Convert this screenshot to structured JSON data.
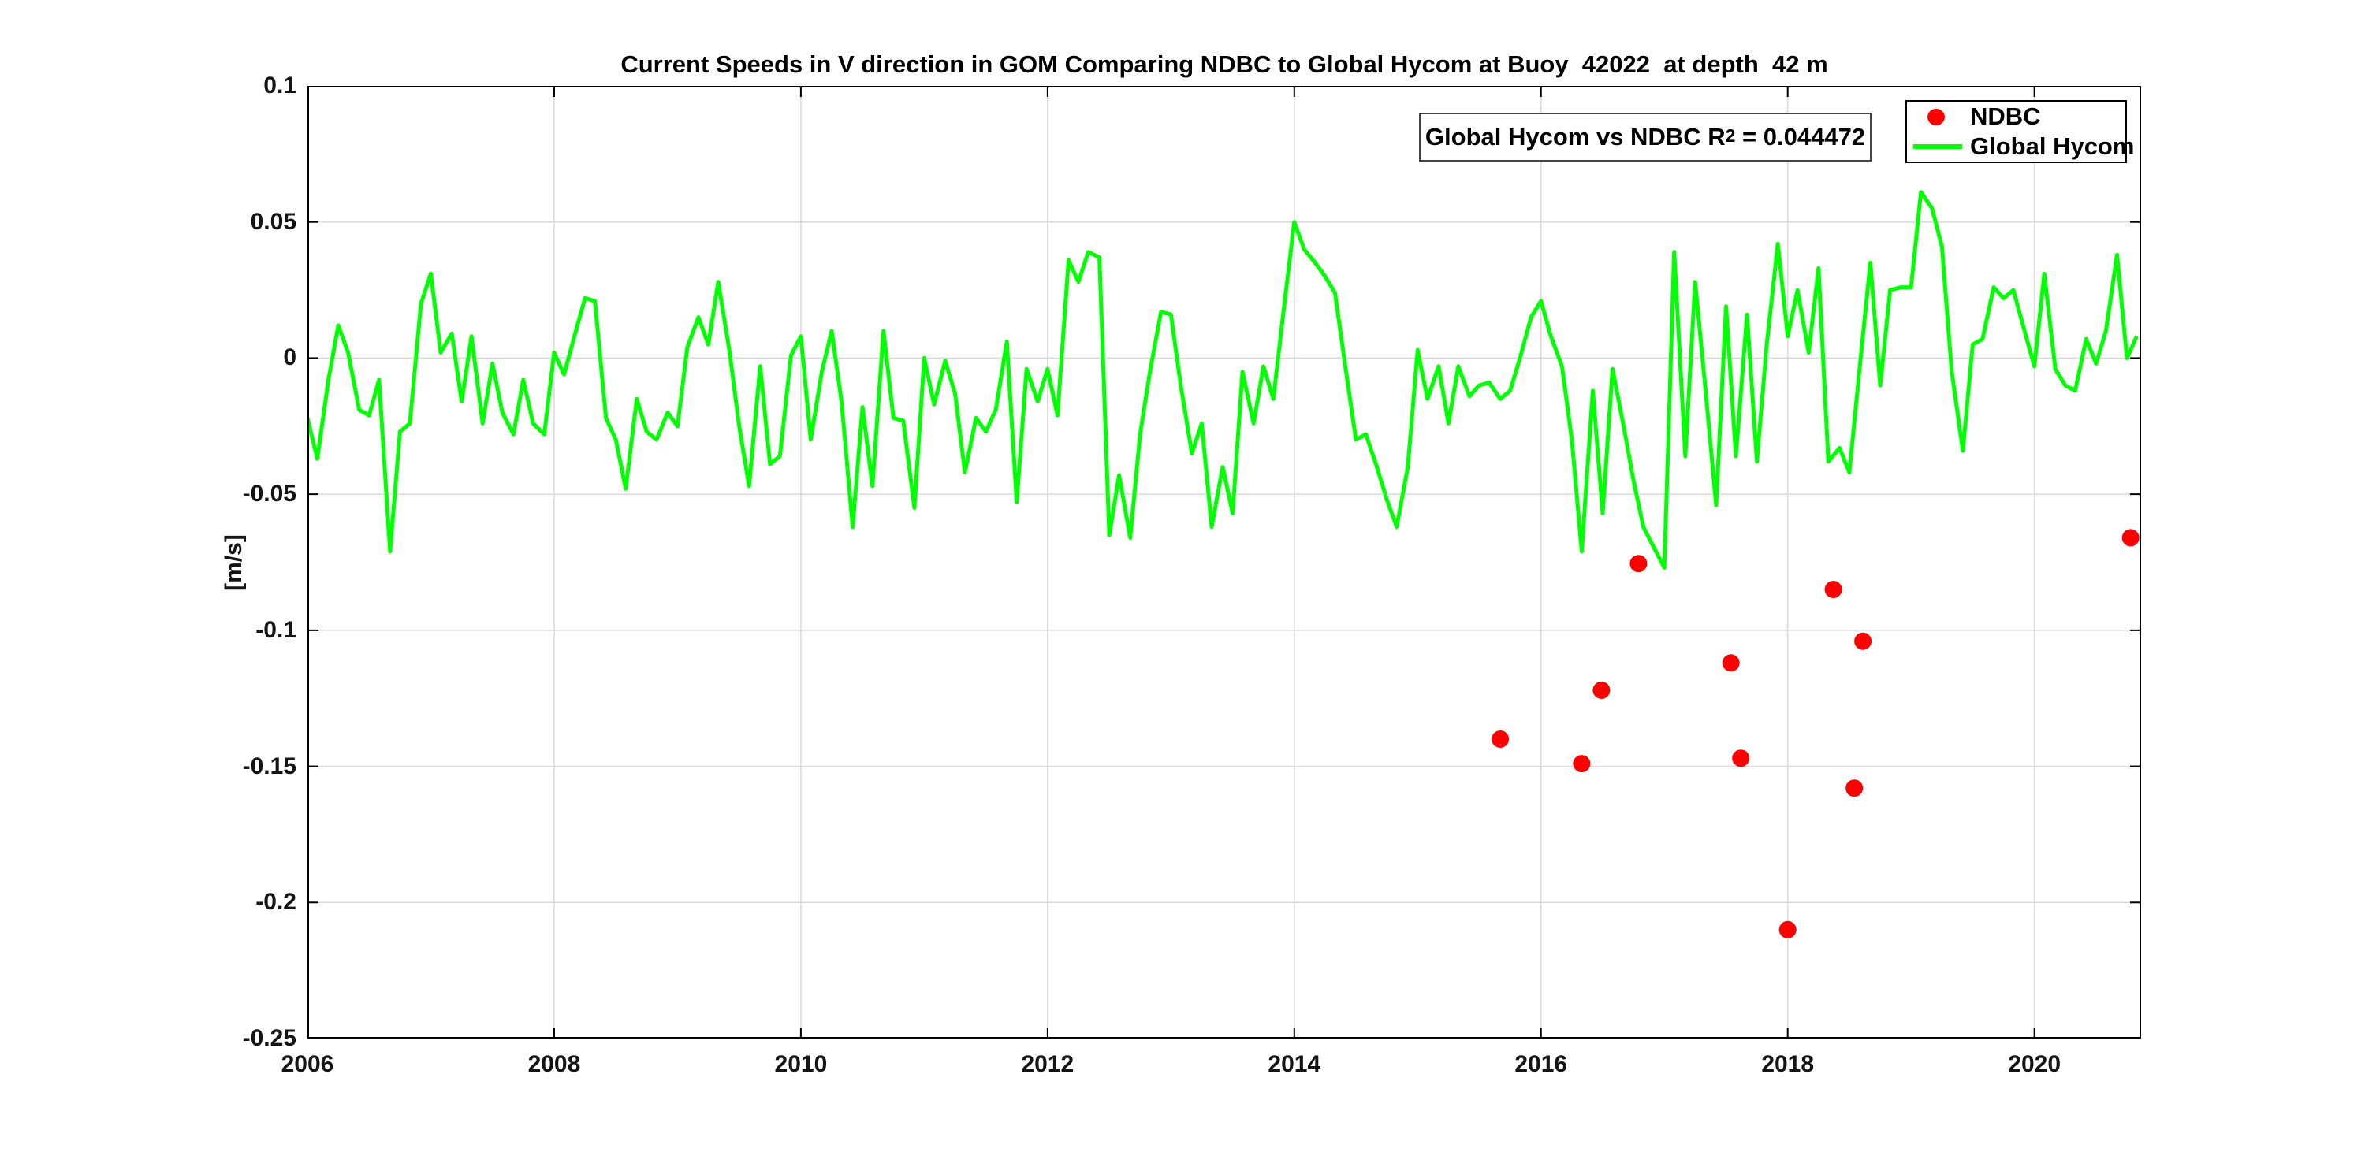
{
  "figure": {
    "title": "Current Speeds in V direction in GOM Comparing NDBC to Global Hycom at Buoy  42022  at depth  42 m",
    "ylabel": "[m/s]",
    "annotation": {
      "prefix": "Global Hycom vs NDBC R",
      "sup": "2",
      "suffix": " = 0.044472"
    },
    "legend": [
      {
        "label": "NDBC",
        "marker": "dot",
        "color": "#ff0000"
      },
      {
        "label": "Global Hycom",
        "marker": "line",
        "color": "#00ff00"
      }
    ],
    "colors": {
      "ndbc": "#ff0000",
      "hycom": "#00ff00",
      "grid": "#d9d9d9",
      "axis": "#000000",
      "background": "#ffffff"
    }
  },
  "chart_data": {
    "type": "line+scatter",
    "title": "Current Speeds in V direction in GOM Comparing NDBC to Global Hycom at Buoy  42022  at depth  42 m",
    "xlabel": "",
    "ylabel": "[m/s]",
    "xlim": [
      2006,
      2020.865
    ],
    "ylim": [
      -0.25,
      0.1
    ],
    "grid": true,
    "legend_position": "top-right",
    "xticks": {
      "values": [
        2006,
        2008,
        2010,
        2012,
        2014,
        2016,
        2018,
        2020
      ],
      "labels": [
        "2006",
        "2008",
        "2010",
        "2012",
        "2014",
        "2016",
        "2018",
        "2020"
      ]
    },
    "yticks": {
      "values": [
        0.1,
        0.05,
        0,
        -0.05,
        -0.1,
        -0.15,
        -0.2,
        -0.25
      ],
      "labels": [
        "0.1",
        "0.05",
        "0",
        "-0.05",
        "-0.1",
        "-0.15",
        "-0.2",
        "-0.25"
      ]
    },
    "series": [
      {
        "name": "Global Hycom",
        "type": "line",
        "color": "#00ff00",
        "line_width": 5,
        "points": [
          [
            2006.0,
            -0.022
          ],
          [
            2006.08,
            -0.037
          ],
          [
            2006.17,
            -0.008
          ],
          [
            2006.25,
            0.012
          ],
          [
            2006.33,
            0.002
          ],
          [
            2006.42,
            -0.019
          ],
          [
            2006.5,
            -0.021
          ],
          [
            2006.58,
            -0.008
          ],
          [
            2006.67,
            -0.071
          ],
          [
            2006.75,
            -0.027
          ],
          [
            2006.83,
            -0.024
          ],
          [
            2006.92,
            0.02
          ],
          [
            2007.0,
            0.031
          ],
          [
            2007.08,
            0.002
          ],
          [
            2007.17,
            0.009
          ],
          [
            2007.25,
            -0.016
          ],
          [
            2007.33,
            0.008
          ],
          [
            2007.42,
            -0.024
          ],
          [
            2007.5,
            -0.002
          ],
          [
            2007.58,
            -0.02
          ],
          [
            2007.67,
            -0.028
          ],
          [
            2007.75,
            -0.008
          ],
          [
            2007.83,
            -0.024
          ],
          [
            2007.92,
            -0.028
          ],
          [
            2008.0,
            0.002
          ],
          [
            2008.08,
            -0.006
          ],
          [
            2008.17,
            0.009
          ],
          [
            2008.25,
            0.022
          ],
          [
            2008.33,
            0.021
          ],
          [
            2008.42,
            -0.022
          ],
          [
            2008.5,
            -0.03
          ],
          [
            2008.58,
            -0.048
          ],
          [
            2008.67,
            -0.015
          ],
          [
            2008.75,
            -0.027
          ],
          [
            2008.83,
            -0.03
          ],
          [
            2008.92,
            -0.02
          ],
          [
            2009.0,
            -0.025
          ],
          [
            2009.08,
            0.004
          ],
          [
            2009.17,
            0.015
          ],
          [
            2009.25,
            0.005
          ],
          [
            2009.33,
            0.028
          ],
          [
            2009.42,
            0.003
          ],
          [
            2009.5,
            -0.025
          ],
          [
            2009.58,
            -0.047
          ],
          [
            2009.67,
            -0.003
          ],
          [
            2009.75,
            -0.039
          ],
          [
            2009.83,
            -0.036
          ],
          [
            2009.92,
            0.001
          ],
          [
            2010.0,
            0.008
          ],
          [
            2010.08,
            -0.03
          ],
          [
            2010.17,
            -0.005
          ],
          [
            2010.25,
            0.01
          ],
          [
            2010.33,
            -0.016
          ],
          [
            2010.42,
            -0.062
          ],
          [
            2010.5,
            -0.018
          ],
          [
            2010.58,
            -0.047
          ],
          [
            2010.67,
            0.01
          ],
          [
            2010.75,
            -0.022
          ],
          [
            2010.83,
            -0.023
          ],
          [
            2010.92,
            -0.055
          ],
          [
            2011.0,
            0.0
          ],
          [
            2011.08,
            -0.017
          ],
          [
            2011.17,
            -0.001
          ],
          [
            2011.25,
            -0.013
          ],
          [
            2011.33,
            -0.042
          ],
          [
            2011.42,
            -0.022
          ],
          [
            2011.5,
            -0.027
          ],
          [
            2011.58,
            -0.019
          ],
          [
            2011.67,
            0.006
          ],
          [
            2011.75,
            -0.053
          ],
          [
            2011.83,
            -0.004
          ],
          [
            2011.92,
            -0.016
          ],
          [
            2012.0,
            -0.004
          ],
          [
            2012.08,
            -0.021
          ],
          [
            2012.17,
            0.036
          ],
          [
            2012.25,
            0.028
          ],
          [
            2012.33,
            0.039
          ],
          [
            2012.42,
            0.037
          ],
          [
            2012.5,
            -0.065
          ],
          [
            2012.58,
            -0.043
          ],
          [
            2012.67,
            -0.066
          ],
          [
            2012.75,
            -0.028
          ],
          [
            2012.83,
            -0.005
          ],
          [
            2012.92,
            0.017
          ],
          [
            2013.0,
            0.016
          ],
          [
            2013.08,
            -0.01
          ],
          [
            2013.17,
            -0.035
          ],
          [
            2013.25,
            -0.024
          ],
          [
            2013.33,
            -0.062
          ],
          [
            2013.42,
            -0.04
          ],
          [
            2013.5,
            -0.057
          ],
          [
            2013.58,
            -0.005
          ],
          [
            2013.67,
            -0.024
          ],
          [
            2013.75,
            -0.003
          ],
          [
            2013.83,
            -0.015
          ],
          [
            2013.92,
            0.02
          ],
          [
            2014.0,
            0.05
          ],
          [
            2014.08,
            0.04
          ],
          [
            2014.17,
            0.035
          ],
          [
            2014.25,
            0.03
          ],
          [
            2014.33,
            0.024
          ],
          [
            2014.42,
            -0.005
          ],
          [
            2014.5,
            -0.03
          ],
          [
            2014.58,
            -0.028
          ],
          [
            2014.67,
            -0.04
          ],
          [
            2014.75,
            -0.052
          ],
          [
            2014.83,
            -0.062
          ],
          [
            2014.92,
            -0.04
          ],
          [
            2015.0,
            0.003
          ],
          [
            2015.08,
            -0.015
          ],
          [
            2015.17,
            -0.003
          ],
          [
            2015.25,
            -0.024
          ],
          [
            2015.33,
            -0.003
          ],
          [
            2015.42,
            -0.014
          ],
          [
            2015.5,
            -0.01
          ],
          [
            2015.58,
            -0.009
          ],
          [
            2015.67,
            -0.015
          ],
          [
            2015.75,
            -0.012
          ],
          [
            2015.83,
            0.0
          ],
          [
            2015.92,
            0.015
          ],
          [
            2016.0,
            0.021
          ],
          [
            2016.08,
            0.008
          ],
          [
            2016.17,
            -0.003
          ],
          [
            2016.25,
            -0.03
          ],
          [
            2016.33,
            -0.071
          ],
          [
            2016.42,
            -0.012
          ],
          [
            2016.5,
            -0.057
          ],
          [
            2016.58,
            -0.004
          ],
          [
            2016.67,
            -0.025
          ],
          [
            2016.75,
            -0.045
          ],
          [
            2016.83,
            -0.062
          ],
          [
            2016.92,
            -0.07
          ],
          [
            2017.0,
            -0.077
          ],
          [
            2017.08,
            0.039
          ],
          [
            2017.17,
            -0.036
          ],
          [
            2017.25,
            0.028
          ],
          [
            2017.33,
            -0.01
          ],
          [
            2017.42,
            -0.054
          ],
          [
            2017.5,
            0.019
          ],
          [
            2017.58,
            -0.036
          ],
          [
            2017.67,
            0.016
          ],
          [
            2017.75,
            -0.038
          ],
          [
            2017.83,
            0.005
          ],
          [
            2017.92,
            0.042
          ],
          [
            2018.0,
            0.008
          ],
          [
            2018.08,
            0.025
          ],
          [
            2018.17,
            0.002
          ],
          [
            2018.25,
            0.033
          ],
          [
            2018.33,
            -0.038
          ],
          [
            2018.42,
            -0.033
          ],
          [
            2018.5,
            -0.042
          ],
          [
            2018.58,
            -0.005
          ],
          [
            2018.67,
            0.035
          ],
          [
            2018.75,
            -0.01
          ],
          [
            2018.83,
            0.025
          ],
          [
            2018.92,
            0.026
          ],
          [
            2019.0,
            0.026
          ],
          [
            2019.08,
            0.061
          ],
          [
            2019.17,
            0.055
          ],
          [
            2019.25,
            0.041
          ],
          [
            2019.33,
            -0.005
          ],
          [
            2019.42,
            -0.034
          ],
          [
            2019.5,
            0.005
          ],
          [
            2019.58,
            0.007
          ],
          [
            2019.67,
            0.026
          ],
          [
            2019.75,
            0.022
          ],
          [
            2019.83,
            0.025
          ],
          [
            2019.92,
            0.01
          ],
          [
            2020.0,
            -0.003
          ],
          [
            2020.08,
            0.031
          ],
          [
            2020.17,
            -0.004
          ],
          [
            2020.25,
            -0.01
          ],
          [
            2020.33,
            -0.012
          ],
          [
            2020.42,
            0.007
          ],
          [
            2020.5,
            -0.002
          ],
          [
            2020.58,
            0.01
          ],
          [
            2020.67,
            0.038
          ],
          [
            2020.75,
            0.0
          ],
          [
            2020.83,
            0.008
          ]
        ]
      },
      {
        "name": "NDBC",
        "type": "scatter",
        "color": "#ff0000",
        "marker_radius": 11,
        "points": [
          [
            2015.67,
            -0.14
          ],
          [
            2016.33,
            -0.149
          ],
          [
            2016.49,
            -0.122
          ],
          [
            2016.79,
            -0.0755
          ],
          [
            2017.54,
            -0.112
          ],
          [
            2017.62,
            -0.147
          ],
          [
            2018.0,
            -0.21
          ],
          [
            2018.37,
            -0.085
          ],
          [
            2018.54,
            -0.158
          ],
          [
            2018.61,
            -0.104
          ],
          [
            2020.78,
            -0.066
          ]
        ]
      }
    ]
  }
}
